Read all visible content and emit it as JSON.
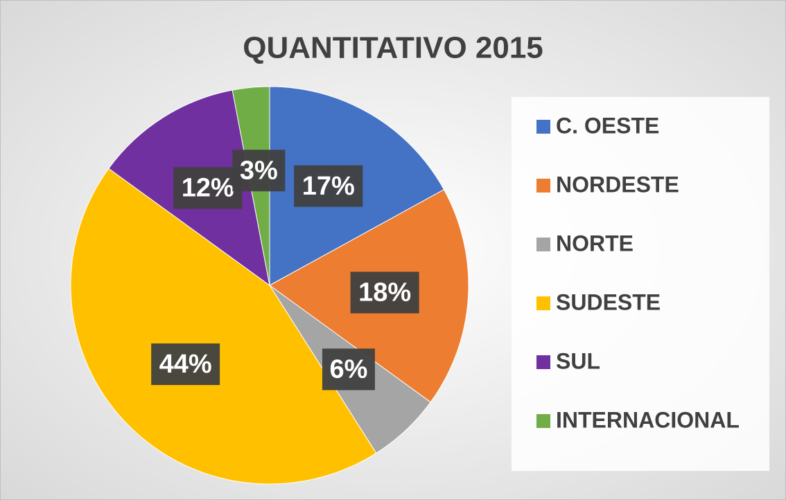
{
  "chart_data": {
    "type": "pie",
    "title": "QUANTITATIVO 2015",
    "categories": [
      "C. OESTE",
      "NORDESTE",
      "NORTE",
      "SUDESTE",
      "SUL",
      "INTERNACIONAL"
    ],
    "values": [
      17,
      18,
      6,
      44,
      12,
      3
    ],
    "value_labels": [
      "17%",
      "18%",
      "6%",
      "44%",
      "12%",
      "3%"
    ],
    "colors": [
      "#4472c4",
      "#ed7d31",
      "#a5a5a5",
      "#ffc000",
      "#7030a0",
      "#70ad47"
    ],
    "legend": "right"
  }
}
